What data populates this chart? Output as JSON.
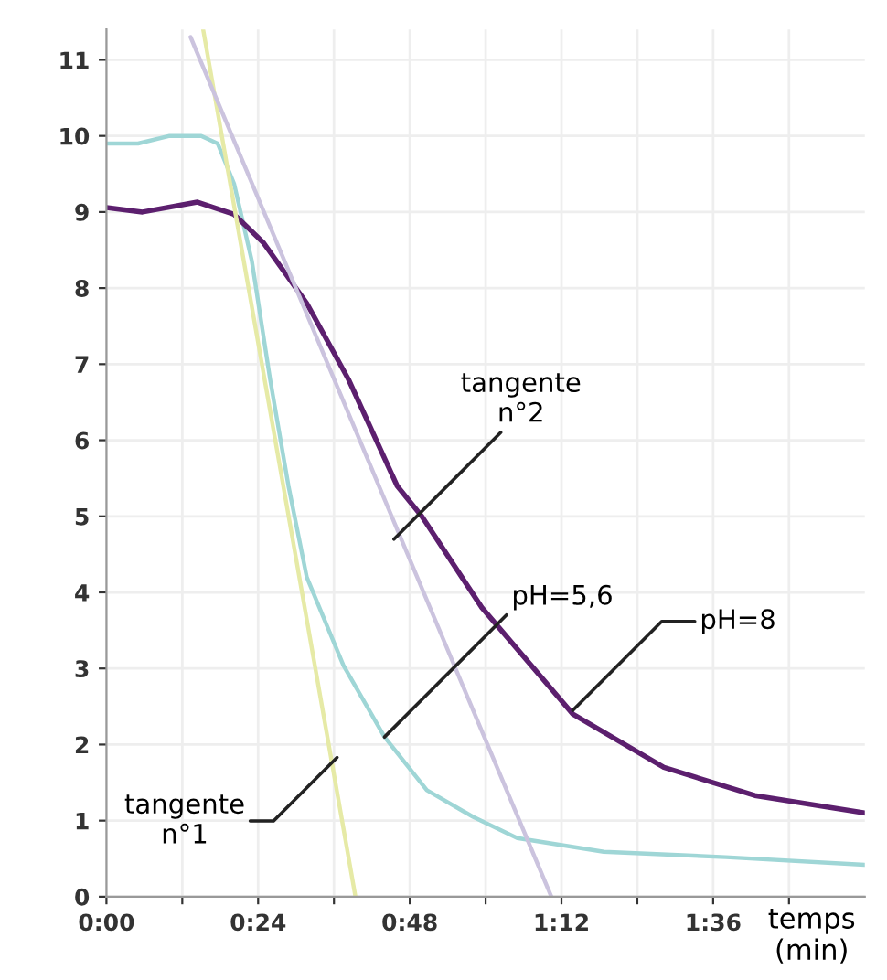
{
  "chart_data": {
    "type": "line",
    "xlabel": "temps\n(min)",
    "xlim": [
      0,
      120
    ],
    "ylim": [
      0,
      11.4
    ],
    "xticks": [
      {
        "value": 0,
        "label": "0:00"
      },
      {
        "value": 12,
        "label": null
      },
      {
        "value": 24,
        "label": "0:24"
      },
      {
        "value": 36,
        "label": null
      },
      {
        "value": 48,
        "label": "0:48"
      },
      {
        "value": 60,
        "label": null
      },
      {
        "value": 72,
        "label": "1:12"
      },
      {
        "value": 84,
        "label": null
      },
      {
        "value": 96,
        "label": "1:36"
      },
      {
        "value": 108,
        "label": null
      }
    ],
    "yticks": [
      0,
      1,
      2,
      3,
      4,
      5,
      6,
      7,
      8,
      9,
      10,
      11
    ],
    "grid": true,
    "legend": false,
    "marker": "none",
    "line_style": "solid",
    "series": [
      {
        "color": "#9fd6d6",
        "x": [
          0,
          5,
          10,
          15,
          17.6,
          20.2,
          23,
          25.9,
          28.8,
          31.7,
          37.5,
          44,
          50.7,
          58,
          65,
          78.7,
          98,
          120
        ],
        "values": [
          9.9,
          9.9,
          10,
          10,
          9.9,
          9.37,
          8.36,
          6.8,
          5.4,
          4.2,
          3.04,
          2.1,
          1.4,
          1.05,
          0.77,
          0.59,
          0.52,
          0.42
        ]
      },
      {
        "color": "#5c1f6e",
        "x": [
          0,
          5.7,
          14.4,
          20.2,
          24.8,
          31.7,
          38.3,
          46,
          49.9,
          59.4,
          73.8,
          88.2,
          102.6,
          120
        ],
        "values": [
          9.06,
          9.0,
          9.13,
          8.97,
          8.6,
          7.8,
          6.8,
          5.4,
          5.0,
          3.8,
          2.4,
          1.7,
          1.33,
          1.1
        ]
      },
      {
        "color": "#e6eaa6",
        "x": [
          15.3,
          39.4
        ],
        "values": [
          11.4,
          0
        ]
      },
      {
        "color": "#cbc3de",
        "x": [
          13.3,
          70.4
        ],
        "values": [
          11.3,
          0
        ]
      }
    ],
    "annotations": [
      {
        "text": "tangente\nn°2",
        "x": 45.5,
        "y": 4.7
      },
      {
        "text": "pH=5,6",
        "x": 44,
        "y": 2.1
      },
      {
        "text": "pH=8",
        "x": 73.8,
        "y": 2.45
      },
      {
        "text": "tangente\nn°1",
        "x": 36.5,
        "y": 1.83
      }
    ]
  }
}
